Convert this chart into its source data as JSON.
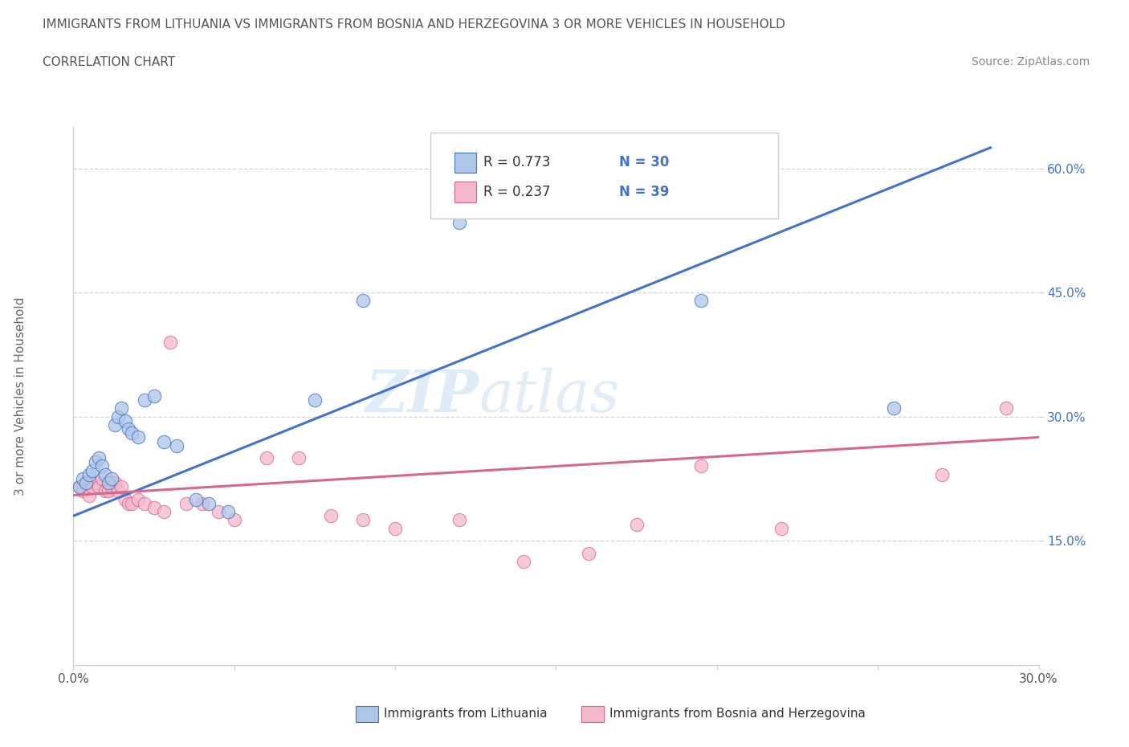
{
  "title_line1": "IMMIGRANTS FROM LITHUANIA VS IMMIGRANTS FROM BOSNIA AND HERZEGOVINA 3 OR MORE VEHICLES IN HOUSEHOLD",
  "title_line2": "CORRELATION CHART",
  "source_text": "Source: ZipAtlas.com",
  "ylabel": "3 or more Vehicles in Household",
  "xlim": [
    0.0,
    0.3
  ],
  "ylim": [
    0.0,
    0.65
  ],
  "color_lithuania": "#aec6e8",
  "color_lithuania_edge": "#4472c4",
  "color_bosnia": "#f4b8cb",
  "color_bosnia_edge": "#d4698a",
  "color_line_lithuania": "#4472c4",
  "color_line_bosnia": "#d4698a",
  "watermark_zip": "ZIP",
  "watermark_atlas": "atlas",
  "legend_r1": "R = 0.773",
  "legend_n1": "N = 30",
  "legend_r2": "R = 0.237",
  "legend_n2": "N = 39",
  "lith_x": [
    0.002,
    0.003,
    0.004,
    0.005,
    0.006,
    0.007,
    0.008,
    0.009,
    0.01,
    0.011,
    0.012,
    0.013,
    0.014,
    0.015,
    0.016,
    0.017,
    0.018,
    0.02,
    0.022,
    0.025,
    0.028,
    0.032,
    0.038,
    0.042,
    0.048,
    0.075,
    0.09,
    0.12,
    0.195,
    0.255
  ],
  "lith_y": [
    0.215,
    0.225,
    0.22,
    0.23,
    0.235,
    0.245,
    0.25,
    0.24,
    0.23,
    0.22,
    0.225,
    0.29,
    0.3,
    0.31,
    0.295,
    0.285,
    0.28,
    0.275,
    0.32,
    0.325,
    0.27,
    0.265,
    0.2,
    0.195,
    0.185,
    0.32,
    0.44,
    0.535,
    0.44,
    0.31
  ],
  "bos_x": [
    0.002,
    0.003,
    0.004,
    0.005,
    0.006,
    0.007,
    0.008,
    0.009,
    0.01,
    0.011,
    0.012,
    0.013,
    0.014,
    0.015,
    0.016,
    0.017,
    0.018,
    0.02,
    0.022,
    0.025,
    0.028,
    0.03,
    0.035,
    0.04,
    0.045,
    0.05,
    0.06,
    0.07,
    0.08,
    0.09,
    0.1,
    0.12,
    0.14,
    0.16,
    0.175,
    0.195,
    0.22,
    0.27,
    0.29
  ],
  "bos_y": [
    0.215,
    0.21,
    0.22,
    0.205,
    0.215,
    0.22,
    0.215,
    0.225,
    0.21,
    0.21,
    0.215,
    0.22,
    0.21,
    0.215,
    0.2,
    0.195,
    0.195,
    0.2,
    0.195,
    0.19,
    0.185,
    0.39,
    0.195,
    0.195,
    0.185,
    0.175,
    0.25,
    0.25,
    0.18,
    0.175,
    0.165,
    0.175,
    0.125,
    0.135,
    0.17,
    0.24,
    0.165,
    0.23,
    0.31
  ]
}
